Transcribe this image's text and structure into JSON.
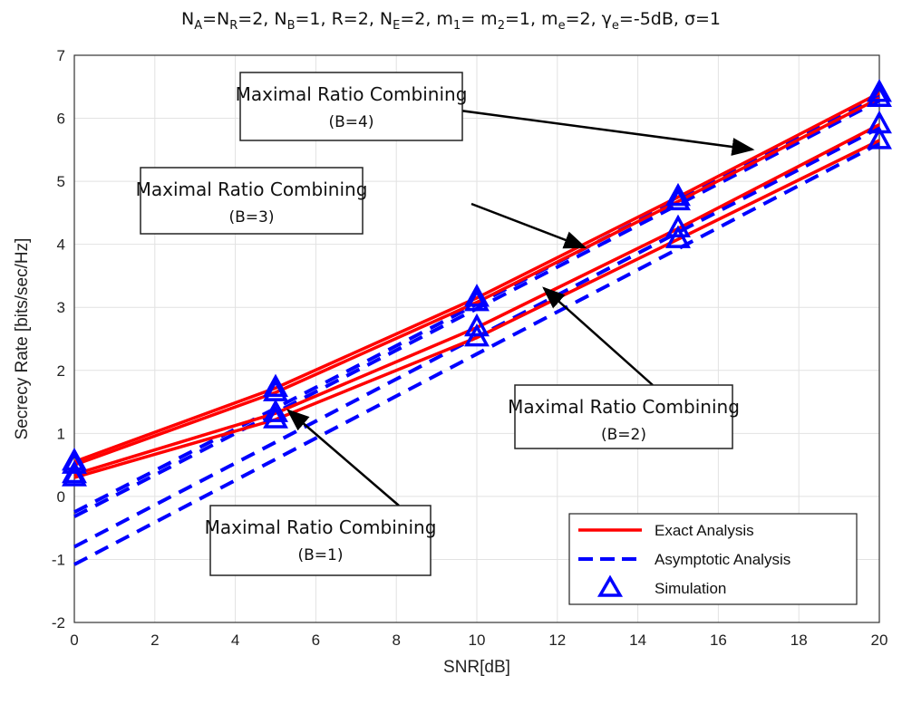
{
  "chart_data": {
    "type": "line",
    "title_parts": [
      {
        "t": "N"
      },
      {
        "t": "A",
        "sub": true
      },
      {
        "t": "=N"
      },
      {
        "t": "R",
        "sub": true
      },
      {
        "t": "=2, N"
      },
      {
        "t": "B",
        "sub": true
      },
      {
        "t": "=1, R=2, N"
      },
      {
        "t": "E",
        "sub": true
      },
      {
        "t": "=2, m"
      },
      {
        "t": "1",
        "sub": true
      },
      {
        "t": "= m"
      },
      {
        "t": "2",
        "sub": true
      },
      {
        "t": "=1, m"
      },
      {
        "t": "e",
        "sub": true
      },
      {
        "t": "=2, γ"
      },
      {
        "t": "e",
        "sub": true
      },
      {
        "t": "=-5dB, σ=1"
      }
    ],
    "xlabel": "SNR[dB]",
    "ylabel": "Secrecy Rate [bits/sec/Hz]",
    "xlim": [
      0,
      20
    ],
    "ylim": [
      -2,
      7
    ],
    "xticks": [
      "0",
      "2",
      "4",
      "6",
      "8",
      "10",
      "12",
      "14",
      "16",
      "18",
      "20"
    ],
    "yticks": [
      "-2",
      "-1",
      "0",
      "1",
      "2",
      "3",
      "4",
      "5",
      "6",
      "7"
    ],
    "grid": true,
    "legend_position": "bottom-right",
    "legend": [
      {
        "name": "Exact Analysis",
        "style": "solid",
        "color": "#ff0000"
      },
      {
        "name": "Asymptotic Analysis",
        "style": "dashed",
        "color": "#0000ff"
      },
      {
        "name": "Simulation",
        "style": "triangle",
        "color": "#0000ff"
      }
    ],
    "x": [
      0,
      5,
      10,
      15,
      20
    ],
    "series": [
      {
        "group": "B=4",
        "exact": [
          0.55,
          1.72,
          3.15,
          4.75,
          6.4
        ],
        "asymptotic": [
          -0.25,
          1.4,
          3.05,
          4.7,
          6.35
        ],
        "simulation": [
          0.55,
          1.72,
          3.15,
          4.75,
          6.4
        ]
      },
      {
        "group": "B=3",
        "exact": [
          0.5,
          1.65,
          3.08,
          4.68,
          6.32
        ],
        "asymptotic": [
          -0.32,
          1.33,
          2.98,
          4.63,
          6.28
        ],
        "simulation": [
          0.5,
          1.65,
          3.08,
          4.68,
          6.32
        ]
      },
      {
        "group": "B=2",
        "exact": [
          0.35,
          1.32,
          2.68,
          4.25,
          5.9
        ],
        "asymptotic": [
          -0.8,
          0.86,
          2.53,
          4.19,
          5.85
        ],
        "simulation": [
          0.35,
          1.32,
          2.68,
          4.25,
          5.9
        ]
      },
      {
        "group": "B=1",
        "exact": [
          0.3,
          1.22,
          2.52,
          4.08,
          5.65
        ],
        "asymptotic": [
          -1.08,
          0.59,
          2.26,
          3.93,
          5.6
        ],
        "simulation": [
          0.3,
          1.22,
          2.52,
          4.08,
          5.65
        ]
      }
    ],
    "annotations": [
      {
        "line1": "Maximal Ratio Combining",
        "line2": "(B=4)"
      },
      {
        "line1": "Maximal Ratio Combining",
        "line2": "(B=3)"
      },
      {
        "line1": "Maximal Ratio Combining",
        "line2": "(B=2)"
      },
      {
        "line1": "Maximal Ratio Combining",
        "line2": "(B=1)"
      }
    ]
  }
}
